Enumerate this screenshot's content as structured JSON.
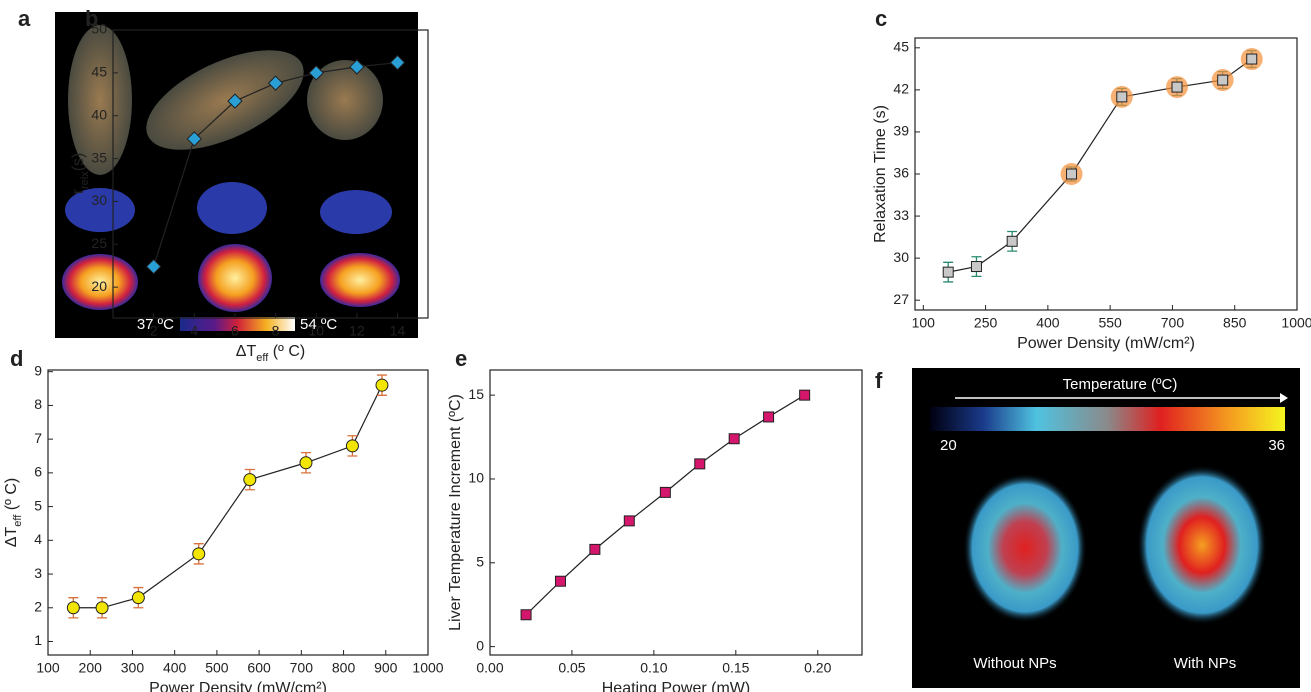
{
  "chart_data": [
    {
      "type": "line",
      "panel_label": "b",
      "xlabel": [
        "ΔT",
        "eff",
        " (º C)"
      ],
      "ylabel": [
        "τ",
        "relx",
        "(s)"
      ],
      "x": [
        2,
        4,
        6,
        8,
        10,
        12,
        14
      ],
      "series": [
        {
          "color": "#2a9fd6",
          "marker": "diamond",
          "values": [
            22.4,
            37.3,
            41.7,
            43.8,
            45.0,
            45.7,
            46.2
          ]
        }
      ],
      "xlim": [
        0,
        15.5
      ],
      "xticks": [
        2,
        4,
        6,
        8,
        10,
        12,
        14
      ],
      "ylim": [
        16.4,
        50
      ],
      "yticks": [
        20,
        25,
        30,
        35,
        40,
        45,
        50
      ]
    },
    {
      "type": "line",
      "panel_label": "c",
      "xlabel": "Power Density (mW/cm²)",
      "ylabel": "Relaxation Time (s)",
      "x": [
        160,
        228,
        314,
        457,
        578,
        711,
        821,
        891
      ],
      "series": [
        {
          "color": "#c8c8c8",
          "marker": "square",
          "values": [
            29.0,
            29.4,
            31.2,
            36.0,
            41.5,
            42.2,
            42.7,
            44.2
          ],
          "errors": [
            0.7,
            0.7,
            0.7,
            0.5,
            0.6,
            0.6,
            0.6,
            0.6
          ]
        }
      ],
      "xlim": [
        80,
        1000
      ],
      "xticks": [
        100,
        250,
        400,
        550,
        700,
        850,
        1000
      ],
      "ylim": [
        26.3,
        45.7
      ],
      "yticks": [
        27,
        30,
        33,
        36,
        39,
        42,
        45
      ]
    },
    {
      "type": "line",
      "panel_label": "d",
      "xlabel": "Power Density (mW/cm²)",
      "ylabel": [
        "ΔT",
        "eff",
        " (º C)"
      ],
      "x": [
        160,
        228,
        314,
        457,
        578,
        711,
        821,
        891
      ],
      "series": [
        {
          "color": "#f2e600",
          "marker": "circle",
          "values": [
            2.0,
            2.0,
            2.3,
            3.6,
            5.8,
            6.3,
            6.8,
            8.6
          ],
          "errors": [
            0.3,
            0.3,
            0.3,
            0.3,
            0.3,
            0.3,
            0.3,
            0.3
          ]
        }
      ],
      "xlim": [
        100,
        1000
      ],
      "xticks": [
        100,
        200,
        300,
        400,
        500,
        600,
        700,
        800,
        900,
        1000
      ],
      "ylim": [
        0.6,
        9.05
      ],
      "yticks": [
        1,
        2,
        3,
        4,
        5,
        6,
        7,
        8,
        9
      ]
    },
    {
      "type": "line",
      "panel_label": "e",
      "xlabel": "Heating Power (mW)",
      "ylabel": "Liver Temperature Increment (ºC)",
      "x": [
        0.022,
        0.043,
        0.064,
        0.085,
        0.107,
        0.128,
        0.149,
        0.17,
        0.192
      ],
      "series": [
        {
          "color": "#d4176c",
          "marker": "square",
          "values": [
            1.9,
            3.9,
            5.8,
            7.5,
            9.2,
            10.9,
            12.4,
            13.7,
            15.0
          ]
        }
      ],
      "xlim": [
        0,
        0.227
      ],
      "xticks": [
        {
          "value": 0,
          "label": "0.00"
        },
        {
          "value": 0.05,
          "label": "0.05"
        },
        {
          "value": 0.1,
          "label": "0.10"
        },
        {
          "value": 0.15,
          "label": "0.15"
        },
        {
          "value": 0.2,
          "label": "0.20"
        }
      ],
      "ylim": [
        -0.5,
        16.5
      ],
      "yticks": [
        0,
        5,
        10,
        15
      ]
    }
  ],
  "panel_a": {
    "label": "a",
    "scale_min": "37 ºC",
    "scale_max": "54 ºC"
  },
  "panel_f": {
    "label": "f",
    "scale_title": "Temperature (ºC)",
    "scale_min": "20",
    "scale_max": "36",
    "left_caption": "Without NPs",
    "right_caption": "With NPs"
  }
}
